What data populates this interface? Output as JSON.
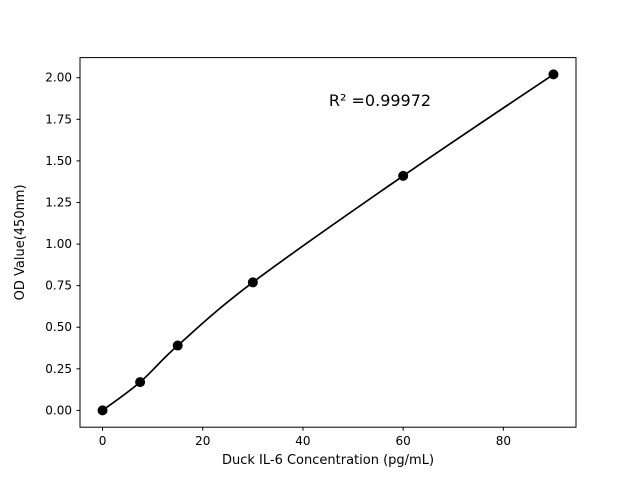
{
  "chart_data": {
    "type": "line",
    "title": "",
    "xlabel": "Duck IL-6 Concentration (pg/mL)",
    "ylabel": "OD Value(450nm)",
    "annotation": "R² =0.99972",
    "x": [
      0,
      7.5,
      15,
      30,
      60,
      90
    ],
    "y": [
      0.0,
      0.17,
      0.39,
      0.77,
      1.41,
      2.02
    ],
    "xlim": [
      -4.5,
      94.5
    ],
    "ylim": [
      -0.101,
      2.121
    ],
    "x_ticks": [
      0,
      20,
      40,
      60,
      80
    ],
    "y_ticks": [
      0.0,
      0.25,
      0.5,
      0.75,
      1.0,
      1.25,
      1.5,
      1.75,
      2.0
    ],
    "y_tick_decimals": 2,
    "line_color": "#000000",
    "marker_color": "#000000",
    "axis_color": "#000000",
    "background_color": "#ffffff",
    "grid": false,
    "legend_position": null
  }
}
